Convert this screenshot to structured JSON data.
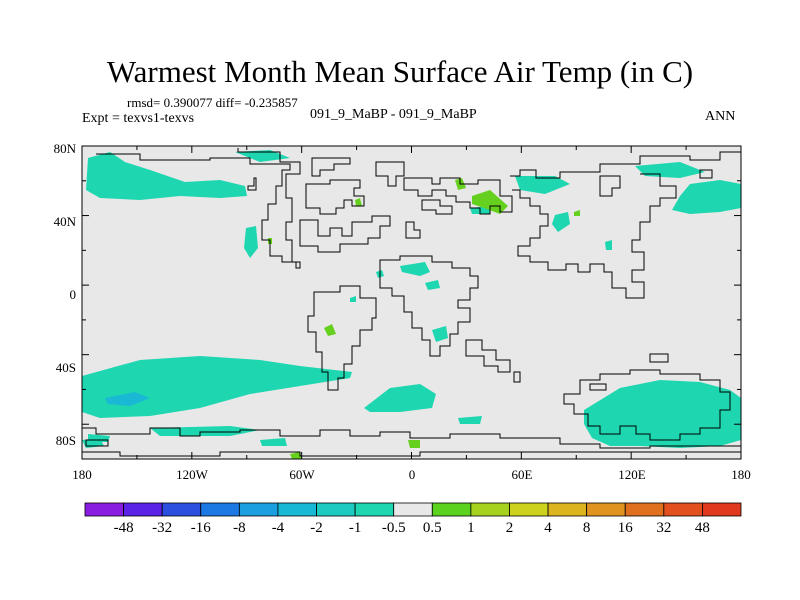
{
  "map": {
    "title": "Warmest Month Mean Surface Air Temp (in C)",
    "stats": "rmsd= 0.390077 diff= -0.235857",
    "expt_label": "Expt = texvs1-texvs",
    "experiment": "091_9_MaBP - 091_9_MaBP",
    "period": "ANN",
    "lat_ticks": [
      "80N",
      "40N",
      "0",
      "40S",
      "80S"
    ],
    "lon_ticks": [
      "180",
      "120W",
      "60W",
      "0",
      "60E",
      "120E",
      "180"
    ],
    "background_color": "#e8e8e8",
    "neg_anomaly_color": "#1ed6b0",
    "pos_anomaly_color": "#66d01e"
  },
  "colorbar": {
    "labels": [
      "-48",
      "-32",
      "-16",
      "-8",
      "-4",
      "-2",
      "-1",
      "-0.5",
      "0.5",
      "1",
      "2",
      "4",
      "8",
      "16",
      "32",
      "48"
    ],
    "colors": [
      "#8a1ee0",
      "#5a23e6",
      "#2c4fe0",
      "#1c79e4",
      "#1c9fe0",
      "#19b9d6",
      "#1ecbc0",
      "#1ed6b0",
      "#e8e8e8",
      "#5ad21e",
      "#a6d21e",
      "#cdd21e",
      "#dcb41e",
      "#e0931e",
      "#e0701e",
      "#e2501e",
      "#e03a1e"
    ]
  }
}
